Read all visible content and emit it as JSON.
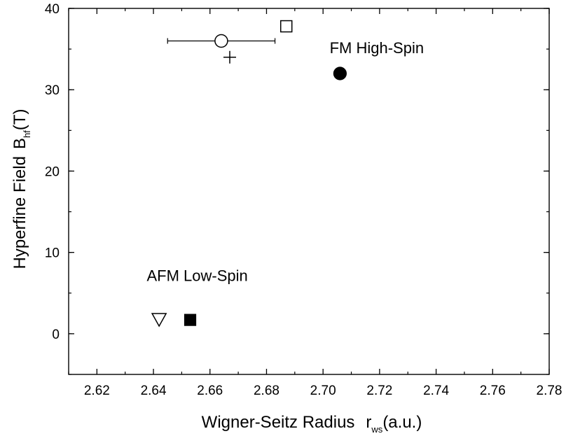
{
  "chart_data": {
    "type": "scatter",
    "xlabel": {
      "main": "Wigner-Seitz Radius",
      "symbol": "r",
      "subscript": "ws",
      "unit": "(a.u.)"
    },
    "ylabel": {
      "main": "Hyperfine Field",
      "symbol": "B",
      "subscript": "hf",
      "unit": "(T)"
    },
    "xlim": [
      2.61,
      2.78
    ],
    "ylim": [
      -5,
      40
    ],
    "x_ticks": [
      "2.62",
      "2.64",
      "2.66",
      "2.68",
      "2.70",
      "2.72",
      "2.74",
      "2.76",
      "2.78"
    ],
    "y_ticks": [
      "0",
      "10",
      "20",
      "30",
      "40"
    ],
    "grid": false,
    "points": [
      {
        "marker": "open-circle",
        "x": 2.664,
        "y": 36.0,
        "xerr": [
          2.645,
          2.683
        ]
      },
      {
        "marker": "plus",
        "x": 2.667,
        "y": 34.0
      },
      {
        "marker": "open-square",
        "x": 2.687,
        "y": 37.8
      },
      {
        "marker": "filled-circle",
        "x": 2.706,
        "y": 32.0
      },
      {
        "marker": "open-triangle-down",
        "x": 2.642,
        "y": 1.8
      },
      {
        "marker": "filled-square",
        "x": 2.653,
        "y": 1.7
      }
    ],
    "annotations": [
      {
        "text": "FM High-Spin",
        "x": 2.719,
        "y": 34.5
      },
      {
        "text": "AFM Low-Spin",
        "x": 2.6555,
        "y": 6.5
      }
    ]
  }
}
